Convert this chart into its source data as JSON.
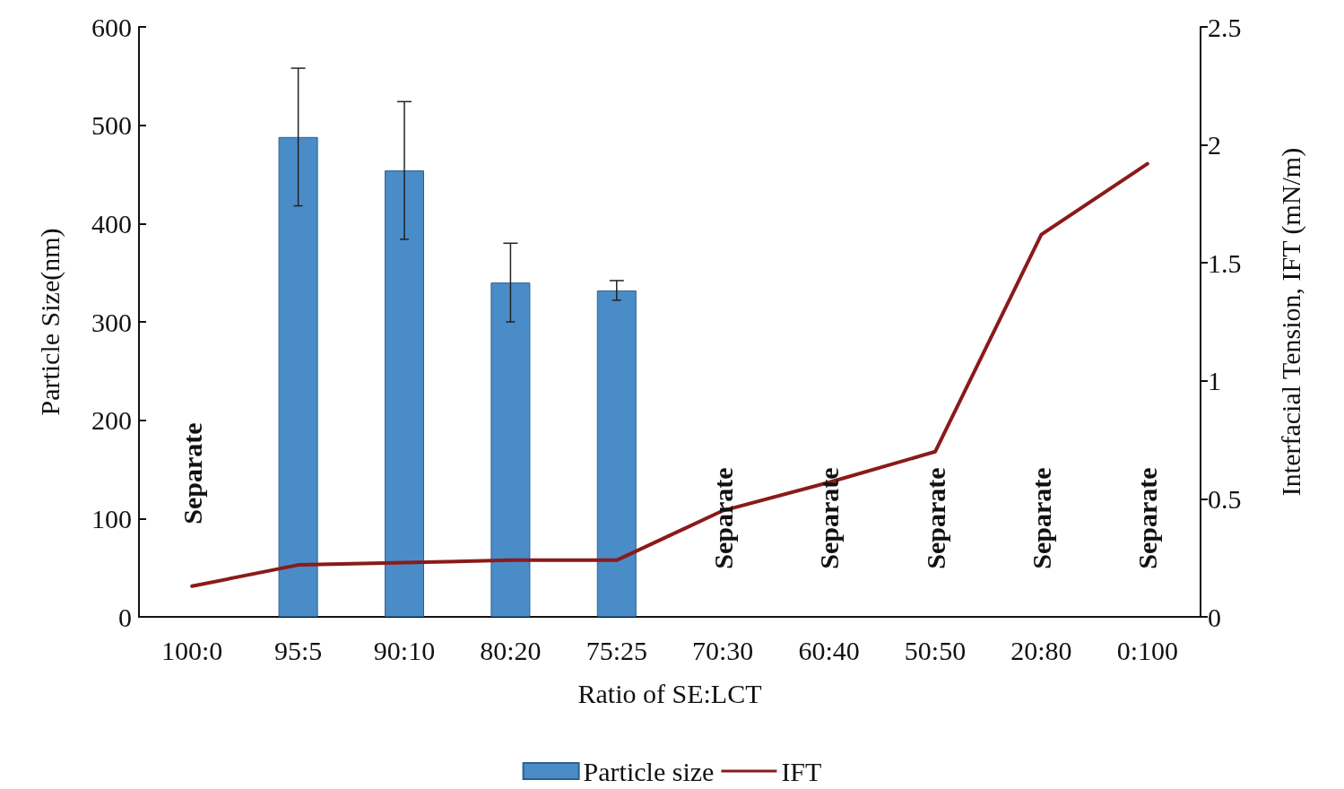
{
  "chart_data": {
    "type": "bar",
    "xlabel": "Ratio of SE:LCT",
    "ylabel": "Particle Size(nm)",
    "y2label": "Interfacial Tension, IFT (mN/m)",
    "categories": [
      "100:0",
      "95:5",
      "90:10",
      "80:20",
      "75:25",
      "70:30",
      "60:40",
      "50:50",
      "20:80",
      "0:100"
    ],
    "series": [
      {
        "name": "Particle size",
        "color": "#4a8cc8",
        "values": [
          null,
          488,
          454,
          340,
          332,
          null,
          null,
          null,
          null,
          null
        ],
        "errors": [
          null,
          70,
          70,
          40,
          10,
          null,
          null,
          null,
          null,
          null
        ]
      },
      {
        "name": "IFT",
        "type": "line",
        "axis": "y2",
        "color": "#8b1a1a",
        "values": [
          0.13,
          0.22,
          0.23,
          0.24,
          0.24,
          0.45,
          0.57,
          0.7,
          1.62,
          1.92
        ]
      }
    ],
    "ylim": [
      0,
      600
    ],
    "yticks": [
      0,
      100,
      200,
      300,
      400,
      500,
      600
    ],
    "y2lim": [
      0,
      2.5
    ],
    "y2ticks": [
      0,
      0.5,
      1,
      1.5,
      2,
      2.5
    ],
    "annotations": [
      "Separate",
      "Separate",
      "Separate",
      "Separate",
      "Separate",
      "Separate"
    ],
    "legend": "bottom",
    "grid": false,
    "marker": "none",
    "line_style": "solid"
  }
}
